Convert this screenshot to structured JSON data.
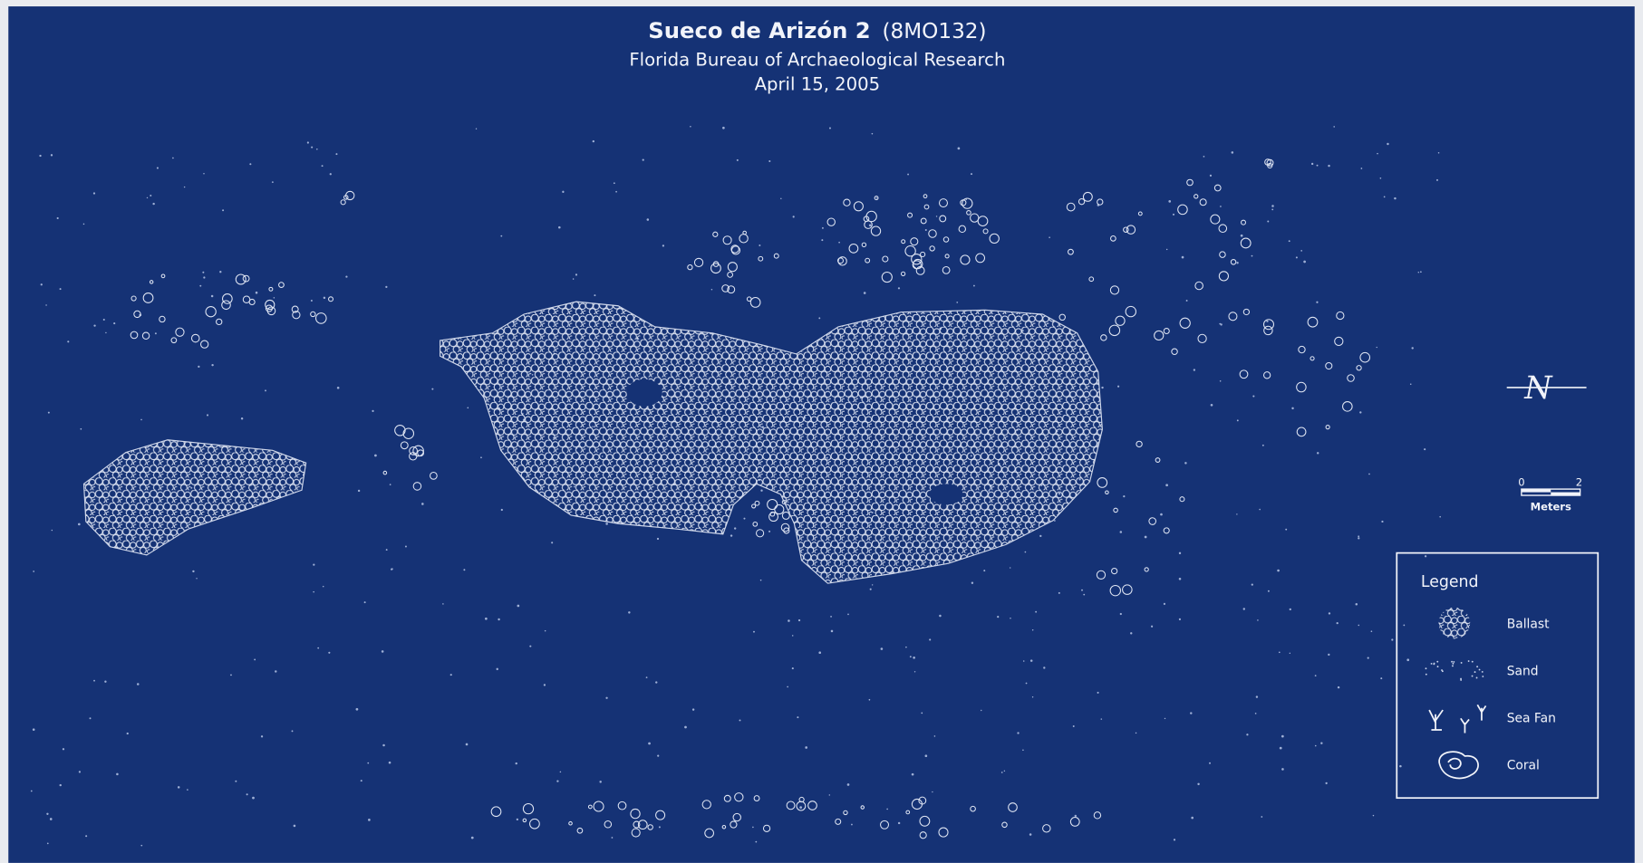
{
  "header": {
    "title": "Sueco de Arizón 2",
    "site_number": "(8MO132)",
    "agency": "Florida Bureau of Archaeological Research",
    "date": "April 15, 2005"
  },
  "north_arrow": {
    "label": "N"
  },
  "scale_bar": {
    "ticks": [
      0,
      2
    ],
    "unit": "Meters"
  },
  "legend": {
    "title": "Legend",
    "items": [
      "Ballast",
      "Sand",
      "Sea Fan",
      "Coral"
    ]
  }
}
